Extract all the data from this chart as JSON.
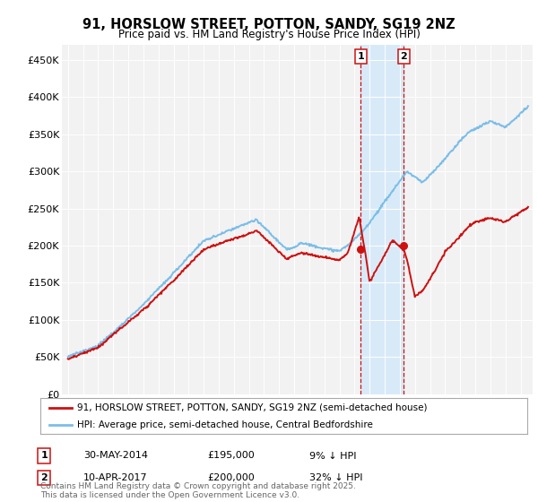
{
  "title": "91, HORSLOW STREET, POTTON, SANDY, SG19 2NZ",
  "subtitle": "Price paid vs. HM Land Registry's House Price Index (HPI)",
  "ylim": [
    0,
    470000
  ],
  "yticks": [
    0,
    50000,
    100000,
    150000,
    200000,
    250000,
    300000,
    350000,
    400000,
    450000
  ],
  "ytick_labels": [
    "£0",
    "£50K",
    "£100K",
    "£150K",
    "£200K",
    "£250K",
    "£300K",
    "£350K",
    "£400K",
    "£450K"
  ],
  "hpi_color": "#7bbde8",
  "price_color": "#cc1111",
  "sale1_date_label": "30-MAY-2014",
  "sale1_price": 195000,
  "sale1_price_label": "£195,000",
  "sale1_hpi_diff": "9% ↓ HPI",
  "sale1_x": 2014.41,
  "sale2_date_label": "10-APR-2017",
  "sale2_price": 200000,
  "sale2_price_label": "£200,000",
  "sale2_hpi_diff": "32% ↓ HPI",
  "sale2_x": 2017.27,
  "legend_line1": "91, HORSLOW STREET, POTTON, SANDY, SG19 2NZ (semi-detached house)",
  "legend_line2": "HPI: Average price, semi-detached house, Central Bedfordshire",
  "footer": "Contains HM Land Registry data © Crown copyright and database right 2025.\nThis data is licensed under the Open Government Licence v3.0.",
  "bg_color": "#ffffff",
  "plot_bg_color": "#f2f2f2",
  "shade_color": "#d8eaf8",
  "xmin": 1994.6,
  "xmax": 2025.8
}
